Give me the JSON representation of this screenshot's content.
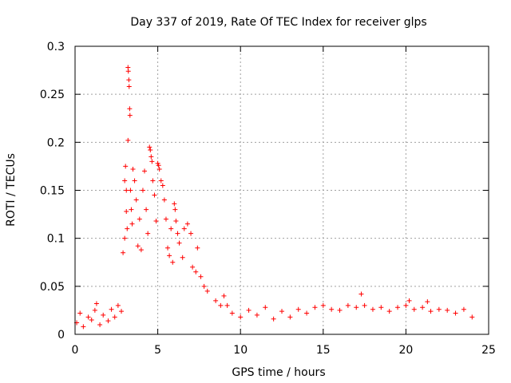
{
  "chart_data": {
    "type": "scatter",
    "title": "Day 337 of 2019, Rate Of TEC Index for receiver glps",
    "xlabel": "GPS time / hours",
    "ylabel": "ROTI / TECUs",
    "xlim": [
      0,
      25
    ],
    "ylim": [
      0,
      0.3
    ],
    "x_ticks": [
      0,
      5,
      10,
      15,
      20,
      25
    ],
    "x_tick_labels": [
      "0",
      "5",
      "10",
      "15",
      "20",
      "25"
    ],
    "y_ticks": [
      0,
      0.05,
      0.1,
      0.15,
      0.2,
      0.25,
      0.3
    ],
    "y_tick_labels": [
      "0",
      "0.05",
      "0.1",
      "0.15",
      "0.2",
      "0.25",
      "0.3"
    ],
    "grid": true,
    "marker": "+",
    "marker_color": "#ff0000",
    "series": [
      {
        "name": "ROTI",
        "points": [
          [
            0.1,
            0.012
          ],
          [
            0.3,
            0.022
          ],
          [
            0.5,
            0.008
          ],
          [
            0.8,
            0.018
          ],
          [
            1.0,
            0.015
          ],
          [
            1.2,
            0.025
          ],
          [
            1.3,
            0.032
          ],
          [
            1.5,
            0.01
          ],
          [
            1.7,
            0.02
          ],
          [
            2.0,
            0.014
          ],
          [
            2.2,
            0.026
          ],
          [
            2.4,
            0.018
          ],
          [
            2.6,
            0.03
          ],
          [
            2.8,
            0.024
          ],
          [
            2.9,
            0.085
          ],
          [
            3.0,
            0.1
          ],
          [
            3.0,
            0.16
          ],
          [
            3.05,
            0.175
          ],
          [
            3.1,
            0.15
          ],
          [
            3.1,
            0.128
          ],
          [
            3.15,
            0.11
          ],
          [
            3.2,
            0.278
          ],
          [
            3.22,
            0.274
          ],
          [
            3.25,
            0.265
          ],
          [
            3.27,
            0.258
          ],
          [
            3.2,
            0.202
          ],
          [
            3.3,
            0.235
          ],
          [
            3.32,
            0.228
          ],
          [
            3.35,
            0.15
          ],
          [
            3.4,
            0.13
          ],
          [
            3.45,
            0.115
          ],
          [
            3.5,
            0.172
          ],
          [
            3.6,
            0.16
          ],
          [
            3.7,
            0.14
          ],
          [
            3.8,
            0.092
          ],
          [
            3.9,
            0.12
          ],
          [
            4.0,
            0.088
          ],
          [
            4.1,
            0.15
          ],
          [
            4.2,
            0.17
          ],
          [
            4.3,
            0.13
          ],
          [
            4.4,
            0.105
          ],
          [
            4.5,
            0.195
          ],
          [
            4.55,
            0.192
          ],
          [
            4.6,
            0.185
          ],
          [
            4.65,
            0.18
          ],
          [
            4.7,
            0.16
          ],
          [
            4.8,
            0.145
          ],
          [
            4.9,
            0.118
          ],
          [
            5.0,
            0.178
          ],
          [
            5.05,
            0.176
          ],
          [
            5.1,
            0.172
          ],
          [
            5.2,
            0.16
          ],
          [
            5.3,
            0.155
          ],
          [
            5.4,
            0.14
          ],
          [
            5.5,
            0.12
          ],
          [
            5.6,
            0.09
          ],
          [
            5.7,
            0.082
          ],
          [
            5.8,
            0.11
          ],
          [
            5.9,
            0.075
          ],
          [
            6.0,
            0.136
          ],
          [
            6.05,
            0.13
          ],
          [
            6.1,
            0.118
          ],
          [
            6.2,
            0.105
          ],
          [
            6.3,
            0.095
          ],
          [
            6.5,
            0.08
          ],
          [
            6.6,
            0.11
          ],
          [
            6.8,
            0.115
          ],
          [
            7.0,
            0.105
          ],
          [
            7.1,
            0.07
          ],
          [
            7.3,
            0.065
          ],
          [
            7.4,
            0.09
          ],
          [
            7.6,
            0.06
          ],
          [
            7.8,
            0.05
          ],
          [
            8.0,
            0.045
          ],
          [
            8.5,
            0.035
          ],
          [
            8.8,
            0.03
          ],
          [
            9.0,
            0.04
          ],
          [
            9.2,
            0.03
          ],
          [
            9.5,
            0.022
          ],
          [
            10.0,
            0.018
          ],
          [
            10.5,
            0.025
          ],
          [
            11.0,
            0.02
          ],
          [
            11.5,
            0.028
          ],
          [
            12.0,
            0.016
          ],
          [
            12.5,
            0.024
          ],
          [
            13.0,
            0.018
          ],
          [
            13.5,
            0.026
          ],
          [
            14.0,
            0.022
          ],
          [
            14.5,
            0.028
          ],
          [
            15.0,
            0.03
          ],
          [
            15.5,
            0.026
          ],
          [
            16.0,
            0.025
          ],
          [
            16.5,
            0.03
          ],
          [
            17.0,
            0.028
          ],
          [
            17.3,
            0.042
          ],
          [
            17.5,
            0.03
          ],
          [
            18.0,
            0.026
          ],
          [
            18.5,
            0.028
          ],
          [
            19.0,
            0.024
          ],
          [
            19.5,
            0.028
          ],
          [
            20.0,
            0.03
          ],
          [
            20.2,
            0.035
          ],
          [
            20.5,
            0.026
          ],
          [
            21.0,
            0.028
          ],
          [
            21.3,
            0.034
          ],
          [
            21.5,
            0.024
          ],
          [
            22.0,
            0.026
          ],
          [
            22.5,
            0.025
          ],
          [
            23.0,
            0.022
          ],
          [
            23.5,
            0.026
          ],
          [
            24.0,
            0.018
          ]
        ]
      }
    ]
  }
}
